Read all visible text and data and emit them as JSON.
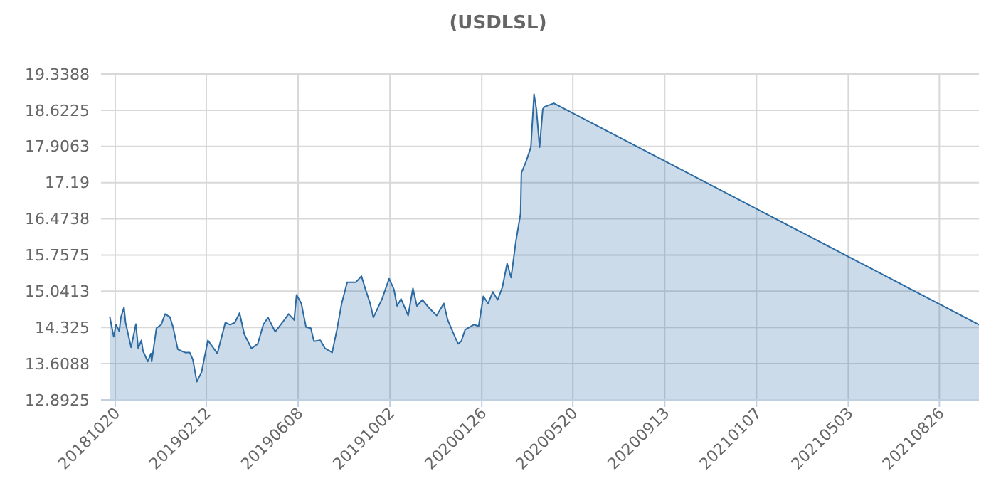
{
  "chart_data": {
    "type": "area",
    "title": "(USDLSL)",
    "x": [
      "2018-10-13",
      "2018-10-18",
      "2018-10-21",
      "2018-10-25",
      "2018-10-27",
      "2018-10-31",
      "2018-11-02",
      "2018-11-09",
      "2018-11-15",
      "2018-11-18",
      "2018-11-22",
      "2018-11-24",
      "2018-11-30",
      "2018-12-04",
      "2018-12-05",
      "2018-12-11",
      "2018-12-17",
      "2018-12-22",
      "2018-12-28",
      "2019-01-01",
      "2019-01-07",
      "2019-01-16",
      "2019-01-22",
      "2019-01-26",
      "2019-01-31",
      "2019-02-06",
      "2019-02-14",
      "2019-02-26",
      "2019-03-08",
      "2019-03-14",
      "2019-03-20",
      "2019-03-26",
      "2019-04-01",
      "2019-04-10",
      "2019-04-18",
      "2019-04-25",
      "2019-05-01",
      "2019-05-10",
      "2019-05-19",
      "2019-05-27",
      "2019-06-03",
      "2019-06-06",
      "2019-06-12",
      "2019-06-18",
      "2019-06-24",
      "2019-06-28",
      "2019-07-06",
      "2019-07-12",
      "2019-07-21",
      "2019-07-27",
      "2019-08-02",
      "2019-08-09",
      "2019-08-20",
      "2019-08-27",
      "2019-09-01",
      "2019-09-07",
      "2019-09-11",
      "2019-09-22",
      "2019-10-01",
      "2019-10-07",
      "2019-10-11",
      "2019-10-16",
      "2019-10-25",
      "2019-10-31",
      "2019-11-05",
      "2019-11-12",
      "2019-11-21",
      "2019-11-30",
      "2019-12-09",
      "2019-12-14",
      "2019-12-27",
      "2019-12-31",
      "2020-01-05",
      "2020-01-16",
      "2020-01-22",
      "2020-01-28",
      "2020-02-03",
      "2020-02-09",
      "2020-02-15",
      "2020-02-21",
      "2020-02-27",
      "2020-03-03",
      "2020-03-09",
      "2020-03-15",
      "2020-03-16",
      "2020-03-22",
      "2020-03-28",
      "2020-04-01",
      "2020-04-04",
      "2020-04-08",
      "2020-04-12",
      "2020-04-14",
      "2020-04-26",
      "2021-10-15"
    ],
    "series": [
      {
        "color": "#2b6aa3",
        "values": [
          14.54,
          14.14,
          14.38,
          14.25,
          14.52,
          14.72,
          14.42,
          13.93,
          14.39,
          13.91,
          14.07,
          13.86,
          13.65,
          13.81,
          13.65,
          14.31,
          14.38,
          14.59,
          14.53,
          14.33,
          13.89,
          13.83,
          13.83,
          13.69,
          13.25,
          13.44,
          14.07,
          13.81,
          14.42,
          14.38,
          14.42,
          14.61,
          14.19,
          13.91,
          14.0,
          14.38,
          14.52,
          14.24,
          14.42,
          14.59,
          14.47,
          14.97,
          14.8,
          14.33,
          14.31,
          14.05,
          14.07,
          13.91,
          13.83,
          14.28,
          14.8,
          15.22,
          15.22,
          15.34,
          15.08,
          14.8,
          14.52,
          14.89,
          15.29,
          15.08,
          14.75,
          14.89,
          14.56,
          15.1,
          14.75,
          14.87,
          14.7,
          14.56,
          14.8,
          14.47,
          14.0,
          14.05,
          14.28,
          14.38,
          14.35,
          14.94,
          14.8,
          15.03,
          14.87,
          15.12,
          15.59,
          15.31,
          16.02,
          16.58,
          17.38,
          17.61,
          17.89,
          18.94,
          18.64,
          17.89,
          18.64,
          18.69,
          18.76,
          14.38
        ]
      }
    ],
    "xlim": [
      "2018-10-02",
      "2021-10-15"
    ],
    "xticks": [
      {
        "value": "2018-10-20",
        "label": "20181020"
      },
      {
        "value": "2019-02-12",
        "label": "20190212"
      },
      {
        "value": "2019-06-08",
        "label": "20190608"
      },
      {
        "value": "2019-10-02",
        "label": "20191002"
      },
      {
        "value": "2020-01-26",
        "label": "20200126"
      },
      {
        "value": "2020-05-20",
        "label": "20200520"
      },
      {
        "value": "2020-09-13",
        "label": "20200913"
      },
      {
        "value": "2021-01-07",
        "label": "20210107"
      },
      {
        "value": "2021-05-03",
        "label": "20210503"
      },
      {
        "value": "2021-08-26",
        "label": "20210826"
      }
    ],
    "ylim": [
      12.8925,
      19.3388
    ],
    "yticks": [
      12.8925,
      13.6088,
      14.325,
      15.0413,
      15.7575,
      16.4738,
      17.19,
      17.9063,
      18.6225,
      19.3388
    ],
    "grid": true
  }
}
